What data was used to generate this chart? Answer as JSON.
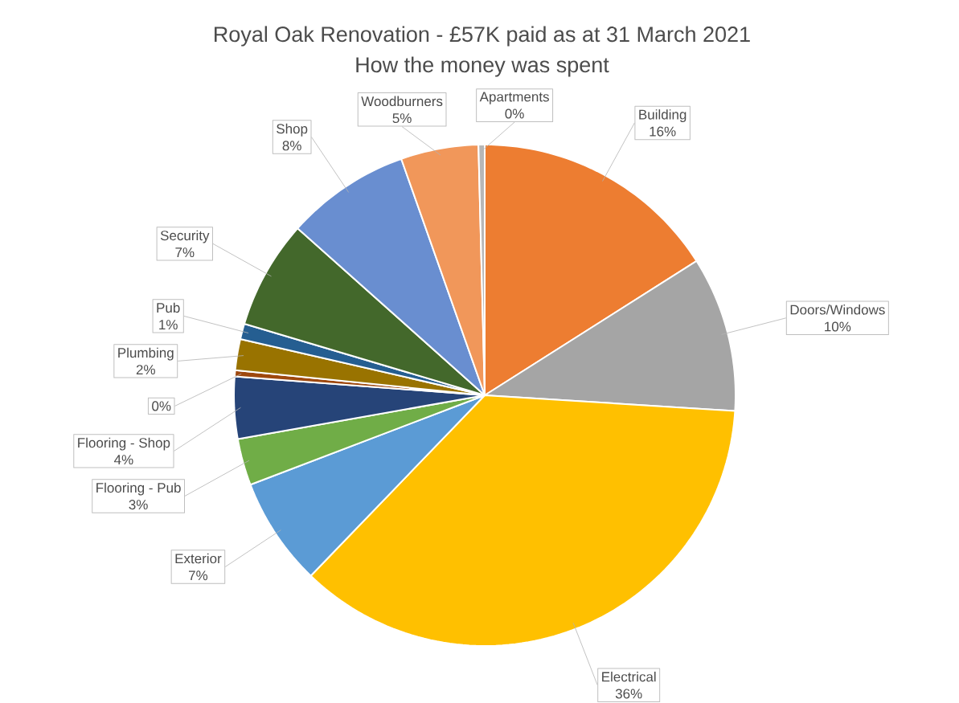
{
  "chart_data": {
    "type": "pie",
    "title": "Royal Oak Renovation - £57K paid as at 31 March 2021",
    "subtitle": "How the money was spent",
    "categories": [
      "Building",
      "Doors/Windows",
      "Electrical",
      "Exterior",
      "Flooring - Pub",
      "Flooring - Shop",
      null,
      "Plumbing",
      "Pub",
      "Security",
      "Shop",
      "Woodburners",
      "Apartments"
    ],
    "values": [
      16,
      10,
      36.2,
      7,
      3,
      4,
      0.4,
      2,
      1,
      7,
      8,
      5,
      0.4
    ],
    "value_labels": [
      "16%",
      "10%",
      "36%",
      "7%",
      "3%",
      "4%",
      "0%",
      "2%",
      "1%",
      "7%",
      "8%",
      "5%",
      "0%"
    ],
    "colors": [
      "#ed7d31",
      "#a5a5a5",
      "#ffc000",
      "#5b9bd5",
      "#70ad47",
      "#264478",
      "#9e480e",
      "#997300",
      "#255e91",
      "#43682b",
      "#698ed0",
      "#f1975a",
      "#b7b7b7"
    ]
  }
}
